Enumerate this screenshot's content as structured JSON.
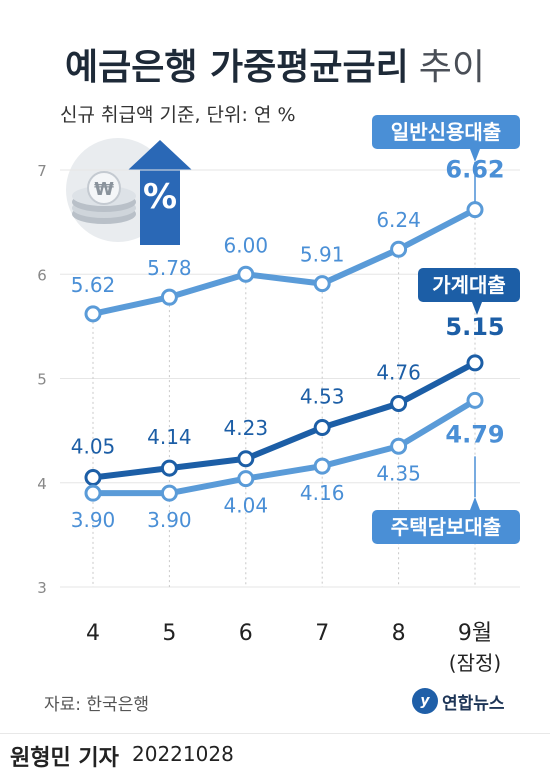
{
  "header": {
    "title_bold": "예금은행 가중평균금리",
    "title_light": "추이",
    "subtitle": "신규 취급액 기준, 단위: 연 %"
  },
  "icon": {
    "name": "won-coin-percent-up-icon",
    "percent_symbol": "%",
    "won_symbol": "₩"
  },
  "colors": {
    "general_credit": "#5a9bd8",
    "household": "#1c5ea6",
    "mortgage": "#5a9bd8",
    "grid": "#e6e6e6",
    "axis_text": "#888888"
  },
  "chart_data": {
    "type": "line",
    "categories": [
      "4",
      "5",
      "6",
      "7",
      "8",
      "9월"
    ],
    "category_note": "(잠정)",
    "ylim": [
      3,
      7
    ],
    "yticks": [
      3,
      4,
      5,
      6,
      7
    ],
    "grid": true,
    "series": [
      {
        "name": "일반신용대출",
        "values": [
          5.62,
          5.78,
          6.0,
          5.91,
          6.24,
          6.62
        ],
        "labels": [
          "5.62",
          "5.78",
          "6.00",
          "5.91",
          "6.24",
          "6.62"
        ]
      },
      {
        "name": "가계대출",
        "values": [
          4.05,
          4.14,
          4.23,
          4.53,
          4.76,
          5.15
        ],
        "labels": [
          "4.05",
          "4.14",
          "4.23",
          "4.53",
          "4.76",
          "5.15"
        ]
      },
      {
        "name": "주택담보대출",
        "values": [
          3.9,
          3.9,
          4.04,
          4.16,
          4.35,
          4.79
        ],
        "labels": [
          "3.90",
          "3.90",
          "4.04",
          "4.16",
          "4.35",
          "4.79"
        ]
      }
    ]
  },
  "footer": {
    "source": "자료: 한국은행",
    "brand": "연합뉴스",
    "reporter": "원형민 기자",
    "date": "20221028"
  }
}
